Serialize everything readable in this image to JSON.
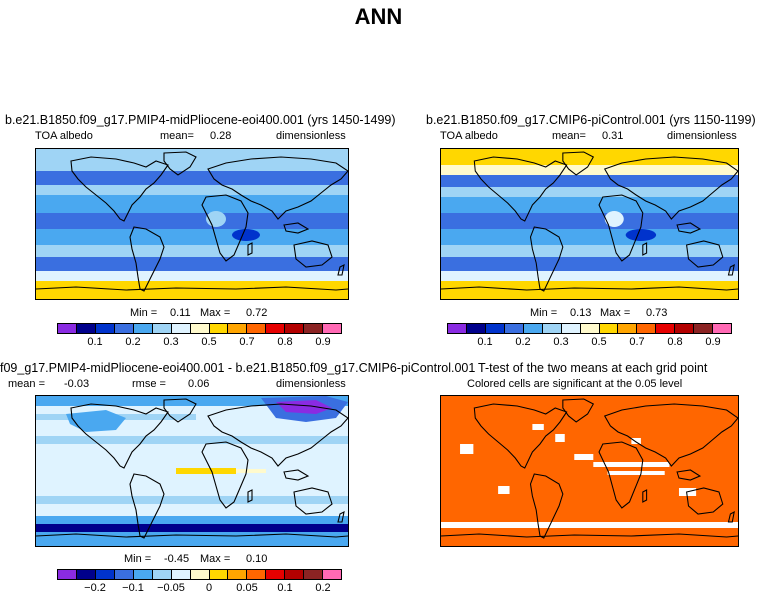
{
  "figure": {
    "title": "ANN"
  },
  "panels": {
    "p1": {
      "title": "b.e21.B1850.f09_g17.PMIP4-midPliocene-eoi400.001 (yrs 1450-1499)",
      "variable": "TOA albedo",
      "mean_label": "mean=",
      "mean": "0.28",
      "units": "dimensionless",
      "min_label": "Min =",
      "min": "0.11",
      "max_label": "Max =",
      "max": "0.72"
    },
    "p2": {
      "title": "b.e21.B1850.f09_g17.CMIP6-piControl.001 (yrs 1150-1199)",
      "variable": "TOA albedo",
      "mean_label": "mean=",
      "mean": "0.31",
      "units": "dimensionless",
      "min_label": "Min =",
      "min": "0.13",
      "max_label": "Max =",
      "max": "0.73"
    },
    "p3": {
      "title": "f09_g17.PMIP4-midPliocene-eoi400.001 - b.e21.B1850.f09_g17.CMIP6-piControl.001",
      "mean_label": "mean =",
      "mean": "-0.03",
      "rmse_label": "rmse =",
      "rmse": "0.06",
      "units": "dimensionless",
      "min_label": "Min =",
      "min": "-0.45",
      "max_label": "Max =",
      "max": "0.10"
    },
    "p4": {
      "title": "T-test of the two means at each grid point",
      "subtitle": "Colored cells are significant at the 0.05 level"
    }
  },
  "colorbars": {
    "abs": {
      "colors": [
        "#8a2be2",
        "#00008b",
        "#0033cc",
        "#3a6fe0",
        "#4aa8f0",
        "#9fd4f5",
        "#dff3ff",
        "#fffacd",
        "#ffd700",
        "#ffa500",
        "#ff6600",
        "#e60000",
        "#b30000",
        "#8b2323",
        "#ff69b4"
      ],
      "ticks": [
        "0.1",
        "0.2",
        "0.3",
        "0.5",
        "0.7",
        "0.8",
        "0.9"
      ]
    },
    "diff": {
      "colors": [
        "#8a2be2",
        "#00008b",
        "#0033cc",
        "#3a6fe0",
        "#4aa8f0",
        "#9fd4f5",
        "#dff3ff",
        "#fffacd",
        "#ffd700",
        "#ffa500",
        "#ff6600",
        "#e60000",
        "#b30000",
        "#8b2323",
        "#ff69b4"
      ],
      "ticks": [
        "−0.2",
        "−0.1",
        "−0.05",
        "0",
        "0.05",
        "0.1",
        "0.2"
      ]
    }
  },
  "chart_data": [
    {
      "type": "heatmap",
      "title": "b.e21.B1850.f09_g17.PMIP4-midPliocene-eoi400.001 (yrs 1450-1499)",
      "variable": "TOA albedo",
      "mean": 0.28,
      "min": 0.11,
      "max": 0.72,
      "units": "dimensionless",
      "legend_levels": [
        0.1,
        0.2,
        0.3,
        0.5,
        0.7,
        0.8,
        0.9
      ]
    },
    {
      "type": "heatmap",
      "title": "b.e21.B1850.f09_g17.CMIP6-piControl.001 (yrs 1150-1199)",
      "variable": "TOA albedo",
      "mean": 0.31,
      "min": 0.13,
      "max": 0.73,
      "units": "dimensionless",
      "legend_levels": [
        0.1,
        0.2,
        0.3,
        0.5,
        0.7,
        0.8,
        0.9
      ]
    },
    {
      "type": "heatmap",
      "title": "f09_g17.PMIP4-midPliocene-eoi400.001 - b.e21.B1850.f09_g17.CMIP6-piControl.001",
      "mean": -0.03,
      "rmse": 0.06,
      "min": -0.45,
      "max": 0.1,
      "units": "dimensionless",
      "legend_levels": [
        -0.2,
        -0.1,
        -0.05,
        0,
        0.05,
        0.1,
        0.2
      ]
    },
    {
      "type": "heatmap",
      "title": "T-test of the two means at each grid point",
      "subtitle": "Colored cells are significant at the 0.05 level",
      "significant_color": "#ff6600"
    }
  ]
}
